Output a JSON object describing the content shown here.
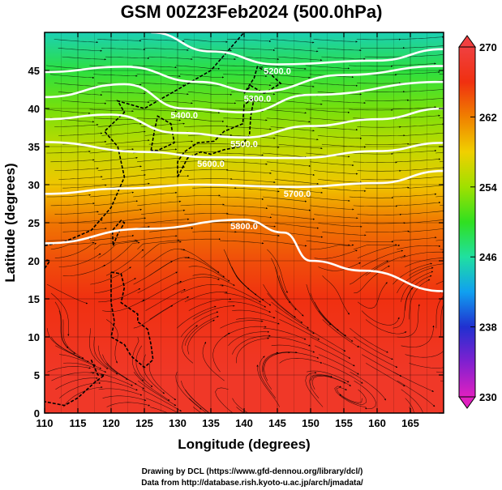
{
  "chart_data": {
    "type": "heatmap",
    "title": "GSM 00Z23Feb2024 (500.0hPa)",
    "xlabel": "Longitude (degrees)",
    "ylabel": "Latitude  (degrees)",
    "xlim": [
      110,
      170
    ],
    "ylim": [
      0,
      50
    ],
    "xticks": [
      110,
      115,
      120,
      125,
      130,
      135,
      140,
      145,
      150,
      155,
      160,
      165
    ],
    "yticks": [
      0,
      5,
      10,
      15,
      20,
      25,
      30,
      35,
      40,
      45
    ],
    "grid": true,
    "colorbar": {
      "min": 230,
      "max": 270,
      "ticks": [
        230,
        238,
        246,
        254,
        262,
        270
      ],
      "colors": [
        "#e020c0",
        "#8020d0",
        "#2030d0",
        "#10a0f0",
        "#20e0a0",
        "#30e020",
        "#a0e000",
        "#f0d000",
        "#f08000",
        "#f03010",
        "#f04040"
      ]
    },
    "temperature_field": {
      "lat": [
        0,
        5,
        10,
        15,
        20,
        25,
        30,
        35,
        40,
        45,
        50
      ],
      "lon_west_east_values": [
        [
          268,
          268
        ],
        [
          268,
          268
        ],
        [
          267,
          267
        ],
        [
          266,
          266
        ],
        [
          264,
          265
        ],
        [
          262,
          263
        ],
        [
          258,
          259
        ],
        [
          255,
          256
        ],
        [
          252,
          253
        ],
        [
          248,
          250
        ],
        [
          244,
          246
        ]
      ]
    },
    "height_contours": [
      {
        "label": "5200.0",
        "points": [
          [
            126,
            50
          ],
          [
            135,
            47.5
          ],
          [
            145,
            45.8
          ],
          [
            160,
            46.3
          ],
          [
            170,
            47.8
          ]
        ]
      },
      {
        "label": "5300.0",
        "points": [
          [
            110,
            44.8
          ],
          [
            122,
            45.5
          ],
          [
            133,
            43.5
          ],
          [
            142,
            42.2
          ],
          [
            155,
            44.4
          ],
          [
            170,
            45.6
          ]
        ]
      },
      {
        "label": "5400.0",
        "points": [
          [
            110,
            41.5
          ],
          [
            122,
            43.2
          ],
          [
            131,
            40
          ],
          [
            140,
            39.5
          ],
          [
            150,
            41.8
          ],
          [
            170,
            43.5
          ]
        ]
      },
      {
        "label": "5500.0",
        "points": [
          [
            110,
            38.6
          ],
          [
            120,
            39.2
          ],
          [
            130,
            36.8
          ],
          [
            140,
            36.2
          ],
          [
            150,
            37.7
          ],
          [
            160,
            38.6
          ],
          [
            170,
            40
          ]
        ]
      },
      {
        "label": "5600.0",
        "points": [
          [
            110,
            35.6
          ],
          [
            125,
            34.3
          ],
          [
            135,
            33.6
          ],
          [
            148,
            33.5
          ],
          [
            160,
            34.4
          ],
          [
            170,
            35.5
          ]
        ]
      },
      {
        "label": "5700.0",
        "points": [
          [
            110,
            28.8
          ],
          [
            122,
            29.5
          ],
          [
            133,
            30
          ],
          [
            148,
            29.7
          ],
          [
            160,
            30.2
          ],
          [
            170,
            31.8
          ]
        ]
      },
      {
        "label": "5800.0",
        "points": [
          [
            110,
            22.3
          ],
          [
            125,
            24.2
          ],
          [
            140,
            25.4
          ],
          [
            146,
            23.7
          ],
          [
            150,
            20
          ],
          [
            158,
            18.7
          ],
          [
            170,
            16
          ]
        ]
      }
    ],
    "wind_streamlines": "present",
    "coastlines": "East Asia and western Pacific"
  },
  "credits": {
    "line1": "Drawing by DCL (https://www.gfd-dennou.org/library/dcl/)",
    "line2": "Data from http://database.rish.kyoto-u.ac.jp/arch/jmadata/"
  }
}
